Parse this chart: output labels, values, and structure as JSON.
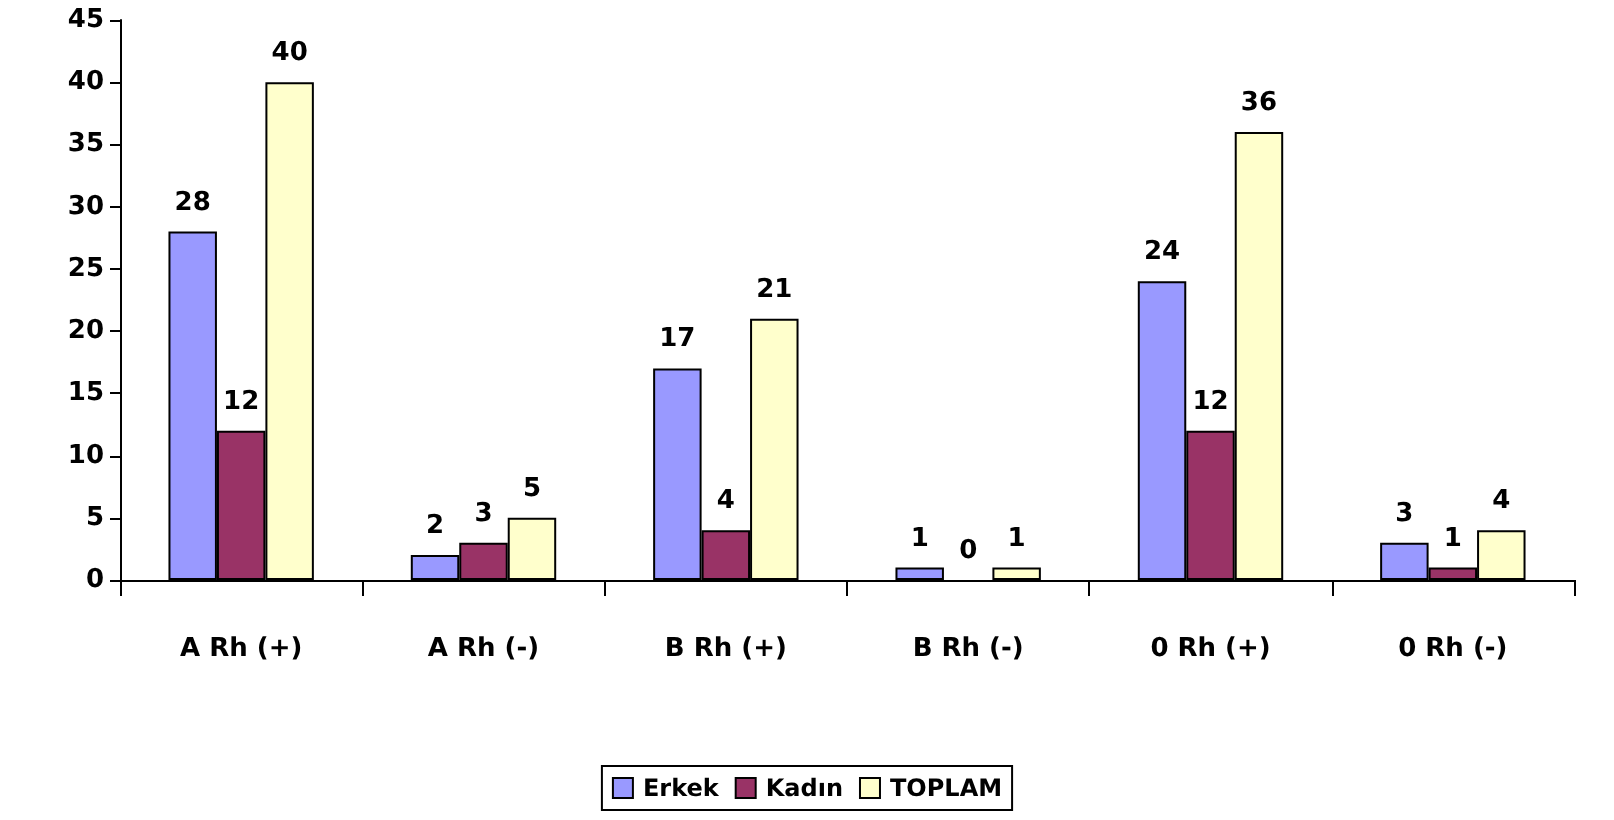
{
  "chart_data": {
    "type": "bar",
    "categories": [
      "A Rh (+)",
      "A Rh (-)",
      "B Rh (+)",
      "B Rh (-)",
      "0 Rh (+)",
      "0 Rh (-)"
    ],
    "series": [
      {
        "name": "Erkek",
        "color": "#9999ff",
        "values": [
          28,
          2,
          17,
          1,
          24,
          3
        ]
      },
      {
        "name": "Kadın",
        "color": "#993366",
        "values": [
          12,
          3,
          4,
          0,
          12,
          1
        ]
      },
      {
        "name": "TOPLAM",
        "color": "#ffffcc",
        "values": [
          40,
          5,
          21,
          1,
          36,
          4
        ]
      }
    ],
    "ylim": [
      0,
      45
    ],
    "yticks": [
      0,
      5,
      10,
      15,
      20,
      25,
      30,
      35,
      40,
      45
    ],
    "grid": false,
    "legend": "bottom",
    "data_labels": true
  }
}
